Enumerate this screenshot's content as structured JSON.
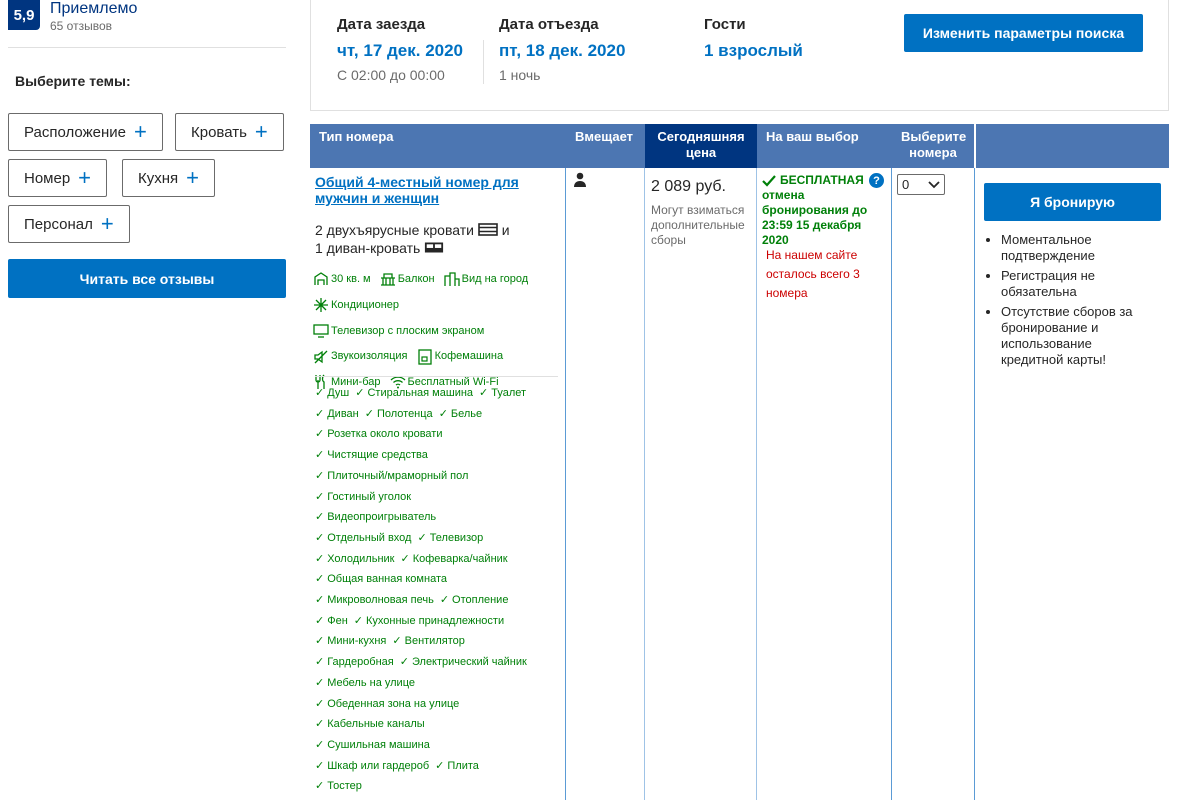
{
  "review": {
    "score": "5,9",
    "word": "Приемлемо",
    "count": "65 отзывов"
  },
  "topics": {
    "title": "Выберите темы:",
    "chips": [
      "Расположение",
      "Кровать",
      "Номер",
      "Кухня",
      "Персонал"
    ],
    "read_all": "Читать все отзывы"
  },
  "search": {
    "checkin_label": "Дата заезда",
    "checkin_value": "чт, 17 дек. 2020",
    "checkin_sub": "С 02:00 до 00:00",
    "checkout_label": "Дата отъезда",
    "checkout_value": "пт, 18 дек. 2020",
    "checkout_sub": "1 ночь",
    "guests_label": "Гости",
    "guests_value": "1 взрослый",
    "change_button": "Изменить параметры поиска"
  },
  "table": {
    "headers": {
      "room_type": "Тип номера",
      "capacity": "Вмещает",
      "price": "Сегодняшняя цена",
      "choice": "На ваш выбор",
      "select": "Выберите номера"
    },
    "room": {
      "name": "Общий 4-местный номер для мужчин и женщин",
      "beds_line1": "2 двухъярусные кровати",
      "beds_and": "и",
      "beds_line2": "1 диван-кровать",
      "facilities": [
        {
          "icon": "area-icon",
          "label": "30 кв. м"
        },
        {
          "icon": "balcony-icon",
          "label": "Балкон"
        },
        {
          "icon": "city-view-icon",
          "label": "Вид на город"
        },
        {
          "icon": "snowflake-icon",
          "label": "Кондиционер"
        },
        {
          "icon": "tv-icon",
          "label": "Телевизор с плоским экраном"
        },
        {
          "icon": "soundproof-icon",
          "label": "Звукоизоляция"
        },
        {
          "icon": "coffee-machine-icon",
          "label": "Кофемашина"
        },
        {
          "icon": "minibar-icon",
          "label": "Мини-бар"
        },
        {
          "icon": "wifi-icon",
          "label": "Бесплатный Wi-Fi"
        }
      ],
      "amenities": [
        [
          "Душ",
          "Стиральная машина",
          "Туалет"
        ],
        [
          "Диван",
          "Полотенца",
          "Белье"
        ],
        [
          "Розетка около кровати"
        ],
        [
          "Чистящие средства"
        ],
        [
          "Плиточный/мраморный пол"
        ],
        [
          "Гостиный уголок"
        ],
        [
          "Видеопроигрыватель"
        ],
        [
          "Отдельный вход",
          "Телевизор"
        ],
        [
          "Холодильник",
          "Кофеварка/чайник"
        ],
        [
          "Общая ванная комната"
        ],
        [
          "Микроволновая печь",
          "Отопление"
        ],
        [
          "Фен",
          "Кухонные принадлежности"
        ],
        [
          "Мини-кухня",
          "Вентилятор"
        ],
        [
          "Гардеробная",
          "Электрический чайник"
        ],
        [
          "Мебель на улице"
        ],
        [
          "Обеденная зона на улице"
        ],
        [
          "Кабельные каналы"
        ],
        [
          "Сушильная машина"
        ],
        [
          "Шкаф или гардероб",
          "Плита"
        ],
        [
          "Тостер"
        ]
      ],
      "price": "2 089 руб.",
      "price_note": "Могут взиматься дополнительные сборы",
      "free_cancel": "БЕСПЛАТНАЯ отмена бронирования до 23:59 15 декабря 2020",
      "few_left": "На нашем сайте осталось всего 3 номера",
      "select_value": "0"
    },
    "book_button": "Я бронирую",
    "benefits": [
      "Моментальное подтверждение",
      "Регистрация не обязательна",
      "Отсутствие сборов за бронирование и использование кредитной карты!"
    ]
  },
  "colors": {
    "brand_dark": "#003580",
    "brand_blue": "#0071c2",
    "header_blue": "#4c76b2",
    "green": "#008009",
    "red": "#cc0000"
  }
}
